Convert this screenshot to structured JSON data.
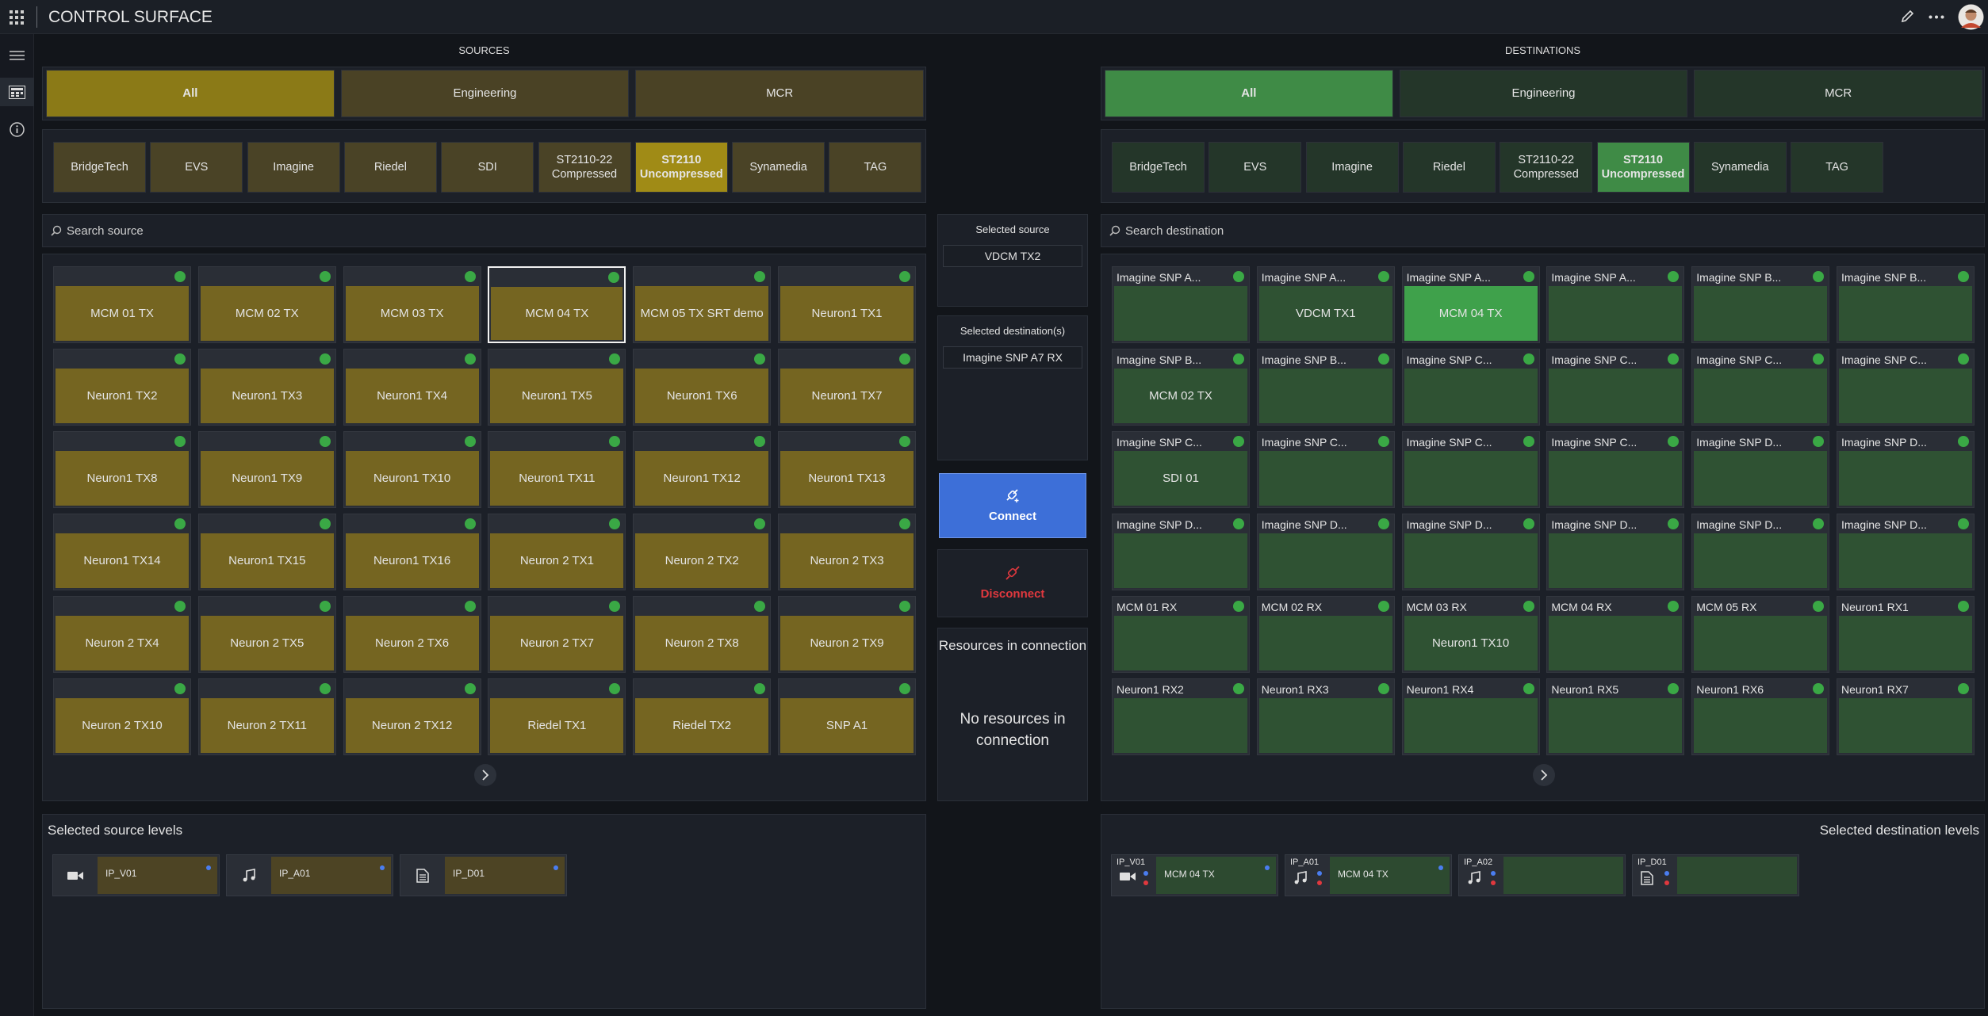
{
  "header": {
    "title": "CONTROL SURFACE"
  },
  "sources": {
    "title": "SOURCES",
    "groups": [
      "All",
      "Engineering",
      "MCR"
    ],
    "active_group": 0,
    "filters": [
      "BridgeTech",
      "EVS",
      "Imagine",
      "Riedel",
      "SDI",
      "ST2110-22 Compressed",
      "ST2110 Uncompressed",
      "Synamedia",
      "TAG"
    ],
    "active_filter": 6,
    "search": "Search source",
    "tiles": [
      "MCM 01 TX",
      "MCM 02 TX",
      "MCM 03 TX",
      "MCM 04 TX",
      "MCM 05 TX SRT demo",
      "Neuron1 TX1",
      "Neuron1 TX2",
      "Neuron1 TX3",
      "Neuron1 TX4",
      "Neuron1 TX5",
      "Neuron1 TX6",
      "Neuron1 TX7",
      "Neuron1 TX8",
      "Neuron1 TX9",
      "Neuron1 TX10",
      "Neuron1 TX11",
      "Neuron1 TX12",
      "Neuron1 TX13",
      "Neuron1 TX14",
      "Neuron1 TX15",
      "Neuron1 TX16",
      "Neuron 2 TX1",
      "Neuron 2 TX2",
      "Neuron 2 TX3",
      "Neuron 2 TX4",
      "Neuron 2 TX5",
      "Neuron 2 TX6",
      "Neuron 2 TX7",
      "Neuron 2 TX8",
      "Neuron 2 TX9",
      "Neuron 2 TX10",
      "Neuron 2 TX11",
      "Neuron 2 TX12",
      "Riedel TX1",
      "Riedel TX2",
      "SNP A1"
    ],
    "selected_tile": 3
  },
  "destinations": {
    "title": "DESTINATIONS",
    "groups": [
      "All",
      "Engineering",
      "MCR"
    ],
    "active_group": 0,
    "filters": [
      "BridgeTech",
      "EVS",
      "Imagine",
      "Riedel",
      "ST2110-22 Compressed",
      "ST2110 Uncompressed",
      "Synamedia",
      "TAG"
    ],
    "active_filter": 5,
    "search": "Search destination",
    "tiles": [
      {
        "label": "Imagine SNP A..."
      },
      {
        "label": "Imagine SNP A...",
        "content": "VDCM TX1"
      },
      {
        "label": "Imagine SNP A...",
        "content": "MCM 04 TX"
      },
      {
        "label": "Imagine SNP A..."
      },
      {
        "label": "Imagine SNP B..."
      },
      {
        "label": "Imagine SNP B..."
      },
      {
        "label": "Imagine SNP B...",
        "content": "MCM 02 TX"
      },
      {
        "label": "Imagine SNP B..."
      },
      {
        "label": "Imagine SNP C..."
      },
      {
        "label": "Imagine SNP C..."
      },
      {
        "label": "Imagine SNP C..."
      },
      {
        "label": "Imagine SNP C..."
      },
      {
        "label": "Imagine SNP C...",
        "content": "SDI 01"
      },
      {
        "label": "Imagine SNP C..."
      },
      {
        "label": "Imagine SNP C..."
      },
      {
        "label": "Imagine SNP C..."
      },
      {
        "label": "Imagine SNP D..."
      },
      {
        "label": "Imagine SNP D..."
      },
      {
        "label": "Imagine SNP D..."
      },
      {
        "label": "Imagine SNP D..."
      },
      {
        "label": "Imagine SNP D..."
      },
      {
        "label": "Imagine SNP D..."
      },
      {
        "label": "Imagine SNP D..."
      },
      {
        "label": "Imagine SNP D..."
      },
      {
        "label": "MCM 01 RX"
      },
      {
        "label": "MCM 02 RX"
      },
      {
        "label": "MCM 03 RX",
        "content": "Neuron1 TX10"
      },
      {
        "label": "MCM 04 RX"
      },
      {
        "label": "MCM 05 RX"
      },
      {
        "label": "Neuron1 RX1"
      },
      {
        "label": "Neuron1 RX2"
      },
      {
        "label": "Neuron1 RX3"
      },
      {
        "label": "Neuron1 RX4"
      },
      {
        "label": "Neuron1 RX5"
      },
      {
        "label": "Neuron1 RX6"
      },
      {
        "label": "Neuron1 RX7"
      }
    ],
    "selected_tile": 2
  },
  "connection": {
    "selected_source_label": "Selected source",
    "selected_source": "VDCM TX2",
    "selected_destinations_label": "Selected destination(s)",
    "selected_destinations": [
      "Imagine SNP A7 RX"
    ],
    "connect": "Connect",
    "disconnect": "Disconnect",
    "resources_title": "Resources in connection",
    "resources_empty": "No resources in connection"
  },
  "source_levels": {
    "title": "Selected source levels",
    "items": [
      "IP_V01",
      "IP_A01",
      "IP_D01"
    ]
  },
  "destination_levels": {
    "title": "Selected destination levels",
    "items": [
      {
        "name": "IP_V01",
        "content": "MCM 04 TX"
      },
      {
        "name": "IP_A01",
        "content": "MCM 04 TX"
      },
      {
        "name": "IP_A02"
      },
      {
        "name": "IP_D01"
      }
    ]
  }
}
